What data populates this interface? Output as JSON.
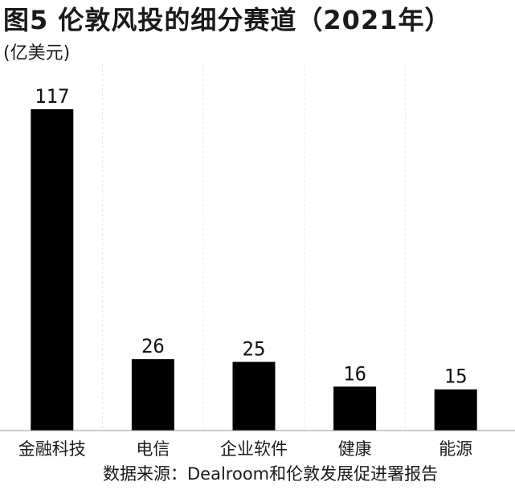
{
  "header": {
    "title": "图5  伦敦风投的细分赛道（2021年）",
    "unit": "(亿美元)"
  },
  "footer": {
    "source": "数据来源：Dealroom和伦敦发展促进署报告"
  },
  "colors": {
    "bar": "#000000",
    "grid": "#e6e6e6",
    "axis": "#9a9a9a"
  },
  "chart_data": {
    "type": "bar",
    "title": "图5  伦敦风投的细分赛道（2021年）",
    "ylabel": "(亿美元)",
    "xlabel": "",
    "categories": [
      "金融科技",
      "电信",
      "企业软件",
      "健康",
      "能源"
    ],
    "values": [
      117,
      26,
      25,
      16,
      15
    ],
    "ylim": [
      0,
      125
    ],
    "grid": "vertical dashed",
    "legend": "none"
  }
}
